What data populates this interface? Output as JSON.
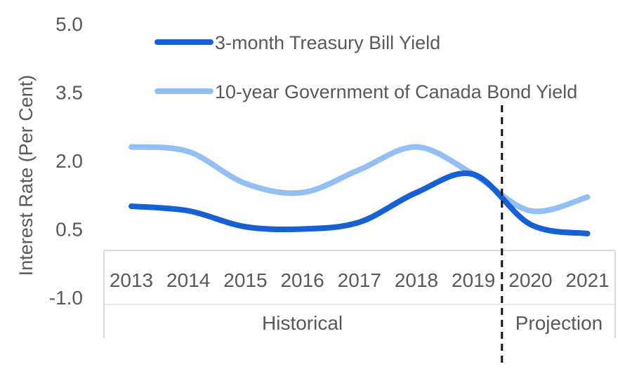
{
  "chart_data": {
    "type": "line",
    "title": "",
    "ylabel": "Interest Rate (Per Cent)",
    "xlabel": "",
    "ylim": [
      -1.0,
      5.0
    ],
    "yticks": [
      "5.0",
      "3.5",
      "2.0",
      "0.5",
      "-1.0"
    ],
    "categories": [
      "2013",
      "2014",
      "2015",
      "2016",
      "2017",
      "2018",
      "2019",
      "2020",
      "2021"
    ],
    "groups": [
      {
        "label": "Historical",
        "span": [
          "2013",
          "2019"
        ]
      },
      {
        "label": "Projection",
        "span": [
          "2020",
          "2021"
        ]
      }
    ],
    "divider_after": "2019",
    "legend_position": "top",
    "series": [
      {
        "name": "3-month Treasury Bill Yield",
        "color": "#1660d4",
        "values": [
          1.0,
          0.9,
          0.55,
          0.5,
          0.65,
          1.3,
          1.7,
          0.6,
          0.4
        ]
      },
      {
        "name": "10-year Government of Canada Bond Yield",
        "color": "#94bff4",
        "values": [
          2.3,
          2.2,
          1.5,
          1.3,
          1.8,
          2.3,
          1.7,
          0.9,
          1.2
        ]
      }
    ]
  }
}
